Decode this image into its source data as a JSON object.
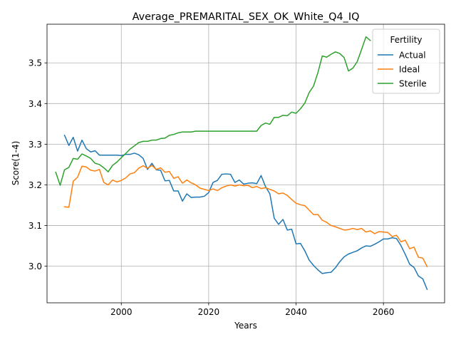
{
  "chart_data": {
    "type": "line",
    "title": "Average_PREMARITAL_SEX_OK_White_Q4_IQ",
    "xlabel": "Years",
    "ylabel": "Score(1-4)",
    "xlim": [
      1983,
      2074
    ],
    "ylim": [
      2.91,
      3.595
    ],
    "xticks": [
      2000,
      2020,
      2040,
      2060
    ],
    "yticks": [
      3.0,
      3.1,
      3.2,
      3.3,
      3.4,
      3.5
    ],
    "ytick_labels": [
      "3.0",
      "3.1",
      "3.2",
      "3.3",
      "3.4",
      "3.5"
    ],
    "grid": true,
    "legend": {
      "title": "Fertility",
      "placement": "top-right"
    },
    "series": [
      {
        "name": "Actual",
        "color": "#1f77b4",
        "x": [
          1987,
          1988,
          1989,
          1990,
          1991,
          1992,
          1993,
          1994,
          1995,
          1996,
          1997,
          1998,
          1999,
          2000,
          2001,
          2002,
          2003,
          2004,
          2005,
          2006,
          2007,
          2008,
          2009,
          2010,
          2011,
          2012,
          2013,
          2014,
          2015,
          2016,
          2017,
          2018,
          2019,
          2020,
          2021,
          2022,
          2023,
          2024,
          2025,
          2026,
          2027,
          2028,
          2029,
          2030,
          2031,
          2032,
          2033,
          2034,
          2035,
          2036,
          2037,
          2038,
          2039,
          2040,
          2041,
          2042,
          2043,
          2044,
          2045,
          2046,
          2047,
          2048,
          2049,
          2050,
          2051,
          2052,
          2053,
          2054,
          2055,
          2056,
          2057,
          2058,
          2059,
          2060,
          2061,
          2062,
          2063,
          2064,
          2065,
          2066,
          2067,
          2068,
          2069,
          2070
        ],
        "values": [
          3.322,
          3.297,
          3.317,
          3.283,
          3.31,
          3.289,
          3.281,
          3.284,
          3.273,
          3.273,
          3.273,
          3.273,
          3.273,
          3.272,
          3.275,
          3.275,
          3.278,
          3.274,
          3.265,
          3.238,
          3.253,
          3.237,
          3.236,
          3.21,
          3.211,
          3.185,
          3.185,
          3.16,
          3.178,
          3.169,
          3.17,
          3.17,
          3.172,
          3.181,
          3.206,
          3.211,
          3.226,
          3.227,
          3.226,
          3.206,
          3.212,
          3.202,
          3.204,
          3.205,
          3.203,
          3.223,
          3.196,
          3.178,
          3.118,
          3.103,
          3.115,
          3.089,
          3.091,
          3.055,
          3.056,
          3.038,
          3.015,
          3.002,
          2.991,
          2.982,
          2.984,
          2.985,
          2.996,
          3.011,
          3.023,
          3.03,
          3.034,
          3.038,
          3.045,
          3.05,
          3.049,
          3.054,
          3.06,
          3.067,
          3.067,
          3.07,
          3.068,
          3.051,
          3.029,
          3.005,
          2.997,
          2.976,
          2.969,
          2.943
        ]
      },
      {
        "name": "Ideal",
        "color": "#ff7f0e",
        "x": [
          1987,
          1988,
          1989,
          1990,
          1991,
          1992,
          1993,
          1994,
          1995,
          1996,
          1997,
          1998,
          1999,
          2000,
          2001,
          2002,
          2003,
          2004,
          2005,
          2006,
          2007,
          2008,
          2009,
          2010,
          2011,
          2012,
          2013,
          2014,
          2015,
          2016,
          2017,
          2018,
          2019,
          2020,
          2021,
          2022,
          2023,
          2024,
          2025,
          2026,
          2027,
          2028,
          2029,
          2030,
          2031,
          2032,
          2033,
          2034,
          2035,
          2036,
          2037,
          2038,
          2039,
          2040,
          2041,
          2042,
          2043,
          2044,
          2045,
          2046,
          2047,
          2048,
          2049,
          2050,
          2051,
          2052,
          2053,
          2054,
          2055,
          2056,
          2057,
          2058,
          2059,
          2060,
          2061,
          2062,
          2063,
          2064,
          2065,
          2066,
          2067,
          2068,
          2069,
          2070
        ],
        "values": [
          3.146,
          3.145,
          3.209,
          3.219,
          3.246,
          3.244,
          3.236,
          3.234,
          3.238,
          3.206,
          3.2,
          3.212,
          3.207,
          3.211,
          3.217,
          3.227,
          3.23,
          3.241,
          3.247,
          3.241,
          3.248,
          3.238,
          3.242,
          3.231,
          3.233,
          3.216,
          3.22,
          3.204,
          3.212,
          3.205,
          3.2,
          3.192,
          3.189,
          3.186,
          3.19,
          3.186,
          3.193,
          3.197,
          3.2,
          3.197,
          3.2,
          3.198,
          3.199,
          3.193,
          3.196,
          3.191,
          3.193,
          3.189,
          3.185,
          3.178,
          3.18,
          3.174,
          3.164,
          3.155,
          3.151,
          3.149,
          3.138,
          3.127,
          3.127,
          3.113,
          3.108,
          3.1,
          3.097,
          3.093,
          3.089,
          3.09,
          3.093,
          3.09,
          3.093,
          3.084,
          3.087,
          3.08,
          3.085,
          3.084,
          3.083,
          3.073,
          3.076,
          3.06,
          3.064,
          3.043,
          3.047,
          3.022,
          3.02,
          2.999
        ]
      },
      {
        "name": "Sterile",
        "color": "#2ca02c",
        "x": [
          1985,
          1986,
          1987,
          1988,
          1989,
          1990,
          1991,
          1992,
          1993,
          1994,
          1995,
          1996,
          1997,
          1998,
          1999,
          2000,
          2001,
          2002,
          2003,
          2004,
          2005,
          2006,
          2007,
          2008,
          2009,
          2010,
          2011,
          2012,
          2013,
          2014,
          2015,
          2016,
          2017,
          2018,
          2019,
          2020,
          2021,
          2022,
          2023,
          2024,
          2025,
          2026,
          2027,
          2028,
          2029,
          2030,
          2031,
          2032,
          2033,
          2034,
          2035,
          2036,
          2037,
          2038,
          2039,
          2040,
          2041,
          2042,
          2043,
          2044,
          2045,
          2046,
          2047,
          2048,
          2049,
          2050,
          2051,
          2052,
          2053,
          2054,
          2055,
          2056,
          2057
        ],
        "values": [
          3.231,
          3.199,
          3.237,
          3.243,
          3.265,
          3.263,
          3.276,
          3.271,
          3.265,
          3.253,
          3.25,
          3.242,
          3.232,
          3.248,
          3.256,
          3.267,
          3.277,
          3.288,
          3.296,
          3.304,
          3.307,
          3.307,
          3.31,
          3.31,
          3.314,
          3.315,
          3.322,
          3.324,
          3.328,
          3.33,
          3.33,
          3.33,
          3.332,
          3.332,
          3.332,
          3.332,
          3.332,
          3.332,
          3.332,
          3.332,
          3.332,
          3.332,
          3.332,
          3.332,
          3.332,
          3.332,
          3.332,
          3.346,
          3.352,
          3.349,
          3.366,
          3.366,
          3.371,
          3.37,
          3.379,
          3.376,
          3.387,
          3.401,
          3.427,
          3.443,
          3.476,
          3.517,
          3.514,
          3.521,
          3.527,
          3.523,
          3.513,
          3.48,
          3.487,
          3.503,
          3.533,
          3.564,
          3.555
        ]
      }
    ]
  }
}
